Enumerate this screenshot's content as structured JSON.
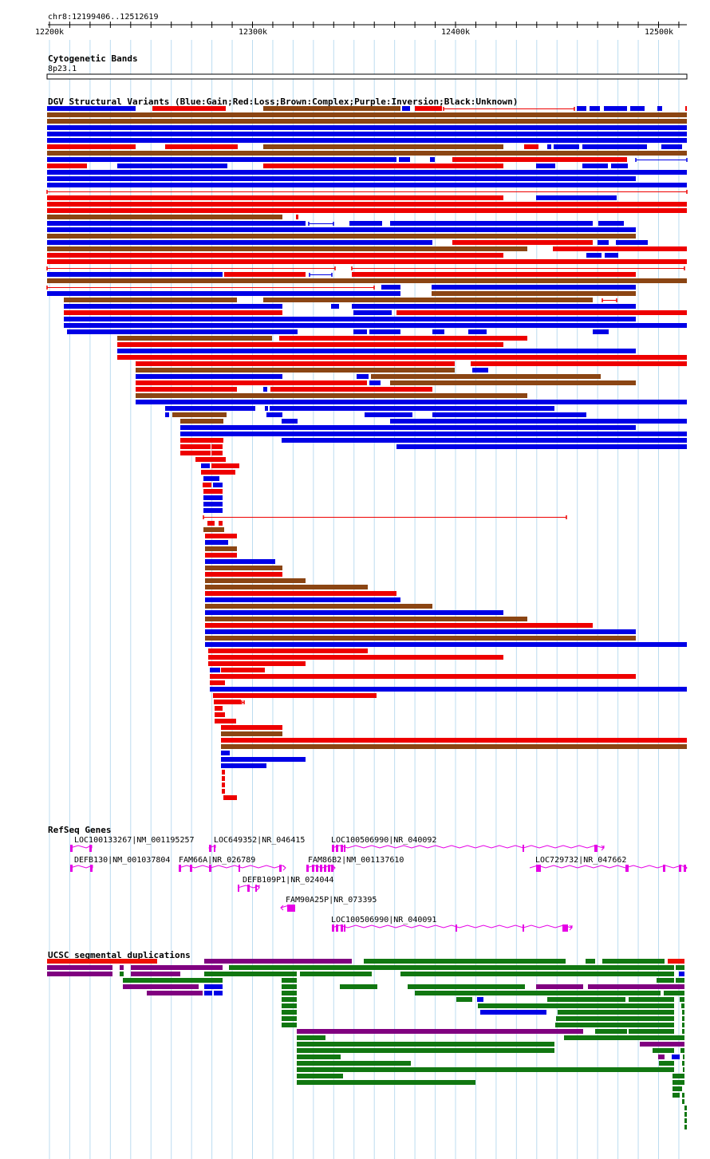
{
  "position": "chr8:12199406..12512619",
  "scale": {
    "labels": [
      "12200k",
      "12300k",
      "12400k",
      "12500k"
    ]
  },
  "tracks": {
    "cytoband": {
      "title": "Cytogenetic Bands",
      "band": "8p23.1"
    },
    "dgv": {
      "title": "DGV Structural Variants (Blue:Gain;Red:Loss;Brown:Complex;Purple:Inversion;Black:Unknown)"
    },
    "refseq": {
      "title": "RefSeq Genes"
    },
    "segdup": {
      "title": "UCSC segmental duplications"
    }
  },
  "colors": {
    "gain": "#0000e6",
    "loss": "#ee0000",
    "complex": "#8b4513",
    "inversion": "#800080",
    "gene": "#e600e6",
    "segdup_green": "#117711",
    "grid": "#bcdcf0"
  },
  "genes": [
    {
      "label": "LOC100133267|NM_001195257"
    },
    {
      "label": "LOC649352|NR_046415"
    },
    {
      "label": "LOC100506990|NR_040092"
    },
    {
      "label": "DEFB130|NM_001037804"
    },
    {
      "label": "FAM66A|NR_026789"
    },
    {
      "label": "FAM86B2|NM_001137610"
    },
    {
      "label": "LOC729732|NR_047662"
    },
    {
      "label": "DEFB109P1|NR_024044"
    },
    {
      "label": "FAM90A25P|NR_073395"
    },
    {
      "label": "LOC100506990|NR_040091"
    }
  ]
}
